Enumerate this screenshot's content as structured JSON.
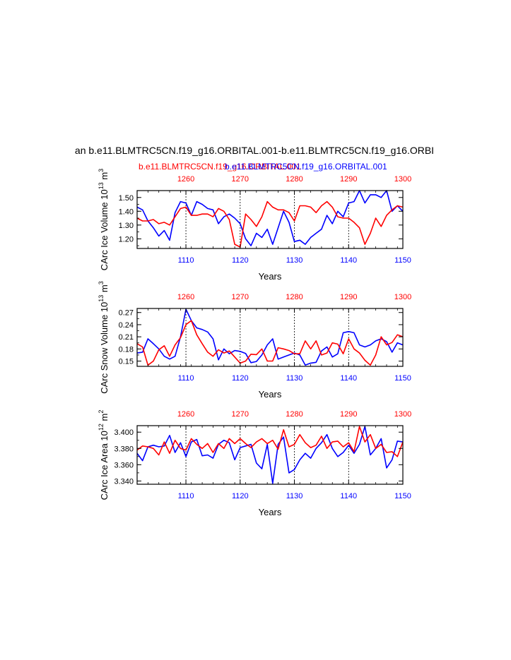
{
  "title": "an b.e11.BLMTRC5CN.f19_g16.ORBITAL.001-b.e11.BLMTRC5CN.f19_g16.ORBI",
  "legend": {
    "red_label": "b.e11.BLMTRC5CN.f19_g16.ORBITAL.001",
    "blue_label": "b.e11.BLMTRC5CN.f19_g16.ORBITAL.001"
  },
  "colors": {
    "red": "#ff0000",
    "blue": "#0000ff",
    "axis": "#000000"
  },
  "chart_data": [
    {
      "type": "line",
      "name": "ice-volume",
      "ylabel_main": "CArc Ice Volume 10",
      "ylabel_exp1": "13",
      "ylabel_unit": " m",
      "ylabel_exp2": "3",
      "xlabel": "Years",
      "ylim": [
        1.13,
        1.55
      ],
      "yticks": [
        1.2,
        1.3,
        1.4,
        1.5
      ],
      "ytick_labels": [
        "1.20",
        "1.30",
        "1.40",
        "1.50"
      ],
      "xlim_bottom": [
        1101,
        1150
      ],
      "xticks_bottom": [
        1110,
        1120,
        1130,
        1140,
        1150
      ],
      "xlim_top": [
        1251,
        1300
      ],
      "xticks_top": [
        1260,
        1270,
        1280,
        1290,
        1300
      ],
      "series": [
        {
          "name": "blue",
          "axis": "bottom",
          "color": "blue",
          "x_start": 1101,
          "values": [
            1.43,
            1.41,
            1.33,
            1.28,
            1.22,
            1.26,
            1.19,
            1.39,
            1.47,
            1.46,
            1.37,
            1.47,
            1.45,
            1.42,
            1.41,
            1.31,
            1.36,
            1.38,
            1.35,
            1.31,
            1.2,
            1.15,
            1.24,
            1.21,
            1.27,
            1.16,
            1.28,
            1.4,
            1.32,
            1.18,
            1.19,
            1.16,
            1.21,
            1.24,
            1.27,
            1.37,
            1.31,
            1.4,
            1.36,
            1.46,
            1.47,
            1.55,
            1.46,
            1.52,
            1.52,
            1.5,
            1.55,
            1.4,
            1.44,
            1.4
          ]
        },
        {
          "name": "red",
          "axis": "top",
          "color": "red",
          "x_start": 1251,
          "values": [
            1.35,
            1.33,
            1.33,
            1.34,
            1.31,
            1.32,
            1.3,
            1.36,
            1.42,
            1.43,
            1.37,
            1.37,
            1.38,
            1.38,
            1.36,
            1.42,
            1.4,
            1.34,
            1.16,
            1.14,
            1.38,
            1.34,
            1.29,
            1.36,
            1.47,
            1.43,
            1.41,
            1.41,
            1.39,
            1.33,
            1.44,
            1.44,
            1.43,
            1.39,
            1.44,
            1.47,
            1.43,
            1.36,
            1.35,
            1.35,
            1.32,
            1.28,
            1.16,
            1.24,
            1.35,
            1.29,
            1.37,
            1.41,
            1.44,
            1.43
          ]
        }
      ]
    },
    {
      "type": "line",
      "name": "snow-volume",
      "ylabel_main": "CArc Snow Volume 10",
      "ylabel_exp1": "13",
      "ylabel_unit": " m",
      "ylabel_exp2": "3",
      "xlabel": "Years",
      "ylim": [
        0.137,
        0.28
      ],
      "yticks": [
        0.15,
        0.18,
        0.21,
        0.24,
        0.27
      ],
      "ytick_labels": [
        "0.15",
        "0.18",
        "0.21",
        "0.24",
        "0.27"
      ],
      "xlim_bottom": [
        1101,
        1150
      ],
      "xticks_bottom": [
        1110,
        1120,
        1130,
        1140,
        1150
      ],
      "xlim_top": [
        1251,
        1300
      ],
      "xticks_top": [
        1260,
        1270,
        1280,
        1290,
        1300
      ],
      "series": [
        {
          "name": "blue",
          "axis": "bottom",
          "color": "blue",
          "x_start": 1101,
          "values": [
            0.17,
            0.172,
            0.205,
            0.193,
            0.18,
            0.162,
            0.155,
            0.162,
            0.21,
            0.278,
            0.25,
            0.232,
            0.228,
            0.222,
            0.205,
            0.153,
            0.18,
            0.168,
            0.176,
            0.174,
            0.169,
            0.146,
            0.149,
            0.165,
            0.19,
            0.205,
            0.155,
            0.16,
            0.165,
            0.17,
            0.165,
            0.14,
            0.145,
            0.147,
            0.175,
            0.185,
            0.16,
            0.168,
            0.22,
            0.223,
            0.22,
            0.19,
            0.185,
            0.19,
            0.2,
            0.205,
            0.198,
            0.172,
            0.195,
            0.19
          ]
        },
        {
          "name": "red",
          "axis": "top",
          "color": "red",
          "x_start": 1251,
          "values": [
            0.193,
            0.185,
            0.14,
            0.15,
            0.178,
            0.188,
            0.162,
            0.19,
            0.208,
            0.24,
            0.25,
            0.215,
            0.193,
            0.172,
            0.162,
            0.178,
            0.17,
            0.175,
            0.16,
            0.145,
            0.15,
            0.167,
            0.166,
            0.18,
            0.15,
            0.15,
            0.183,
            0.18,
            0.176,
            0.168,
            0.168,
            0.2,
            0.18,
            0.2,
            0.165,
            0.17,
            0.195,
            0.192,
            0.168,
            0.205,
            0.18,
            0.17,
            0.152,
            0.14,
            0.165,
            0.21,
            0.19,
            0.196,
            0.215,
            0.21
          ]
        }
      ]
    },
    {
      "type": "line",
      "name": "ice-area",
      "ylabel_main": "CArc Ice Area 10",
      "ylabel_exp1": "12",
      "ylabel_unit": " m",
      "ylabel_exp2": "2",
      "xlabel": "Years",
      "ylim": [
        3.336,
        3.408
      ],
      "yticks": [
        3.34,
        3.36,
        3.38,
        3.4
      ],
      "ytick_labels": [
        "3.340",
        "3.360",
        "3.380",
        "3.400"
      ],
      "xlim_bottom": [
        1101,
        1150
      ],
      "xticks_bottom": [
        1110,
        1120,
        1130,
        1140,
        1150
      ],
      "xlim_top": [
        1251,
        1300
      ],
      "xticks_top": [
        1260,
        1270,
        1280,
        1290,
        1300
      ],
      "series": [
        {
          "name": "blue",
          "axis": "bottom",
          "color": "blue",
          "x_start": 1101,
          "values": [
            3.374,
            3.365,
            3.382,
            3.384,
            3.382,
            3.383,
            3.396,
            3.375,
            3.387,
            3.37,
            3.388,
            3.391,
            3.371,
            3.372,
            3.368,
            3.385,
            3.39,
            3.387,
            3.366,
            3.381,
            3.383,
            3.385,
            3.362,
            3.355,
            3.385,
            3.337,
            3.385,
            3.394,
            3.35,
            3.354,
            3.366,
            3.374,
            3.368,
            3.38,
            3.387,
            3.397,
            3.38,
            3.37,
            3.375,
            3.384,
            3.374,
            3.385,
            3.407,
            3.372,
            3.38,
            3.392,
            3.356,
            3.366,
            3.389,
            3.388
          ]
        },
        {
          "name": "red",
          "axis": "top",
          "color": "red",
          "x_start": 1251,
          "values": [
            3.378,
            3.383,
            3.382,
            3.38,
            3.372,
            3.388,
            3.374,
            3.39,
            3.38,
            3.378,
            3.392,
            3.385,
            3.38,
            3.386,
            3.375,
            3.386,
            3.38,
            3.392,
            3.386,
            3.392,
            3.386,
            3.381,
            3.388,
            3.392,
            3.386,
            3.39,
            3.379,
            3.403,
            3.382,
            3.385,
            3.397,
            3.387,
            3.381,
            3.384,
            3.395,
            3.38,
            3.388,
            3.389,
            3.382,
            3.387,
            3.376,
            3.407,
            3.388,
            3.397,
            3.38,
            3.385,
            3.375,
            3.376,
            3.37,
            3.388
          ]
        }
      ]
    }
  ]
}
